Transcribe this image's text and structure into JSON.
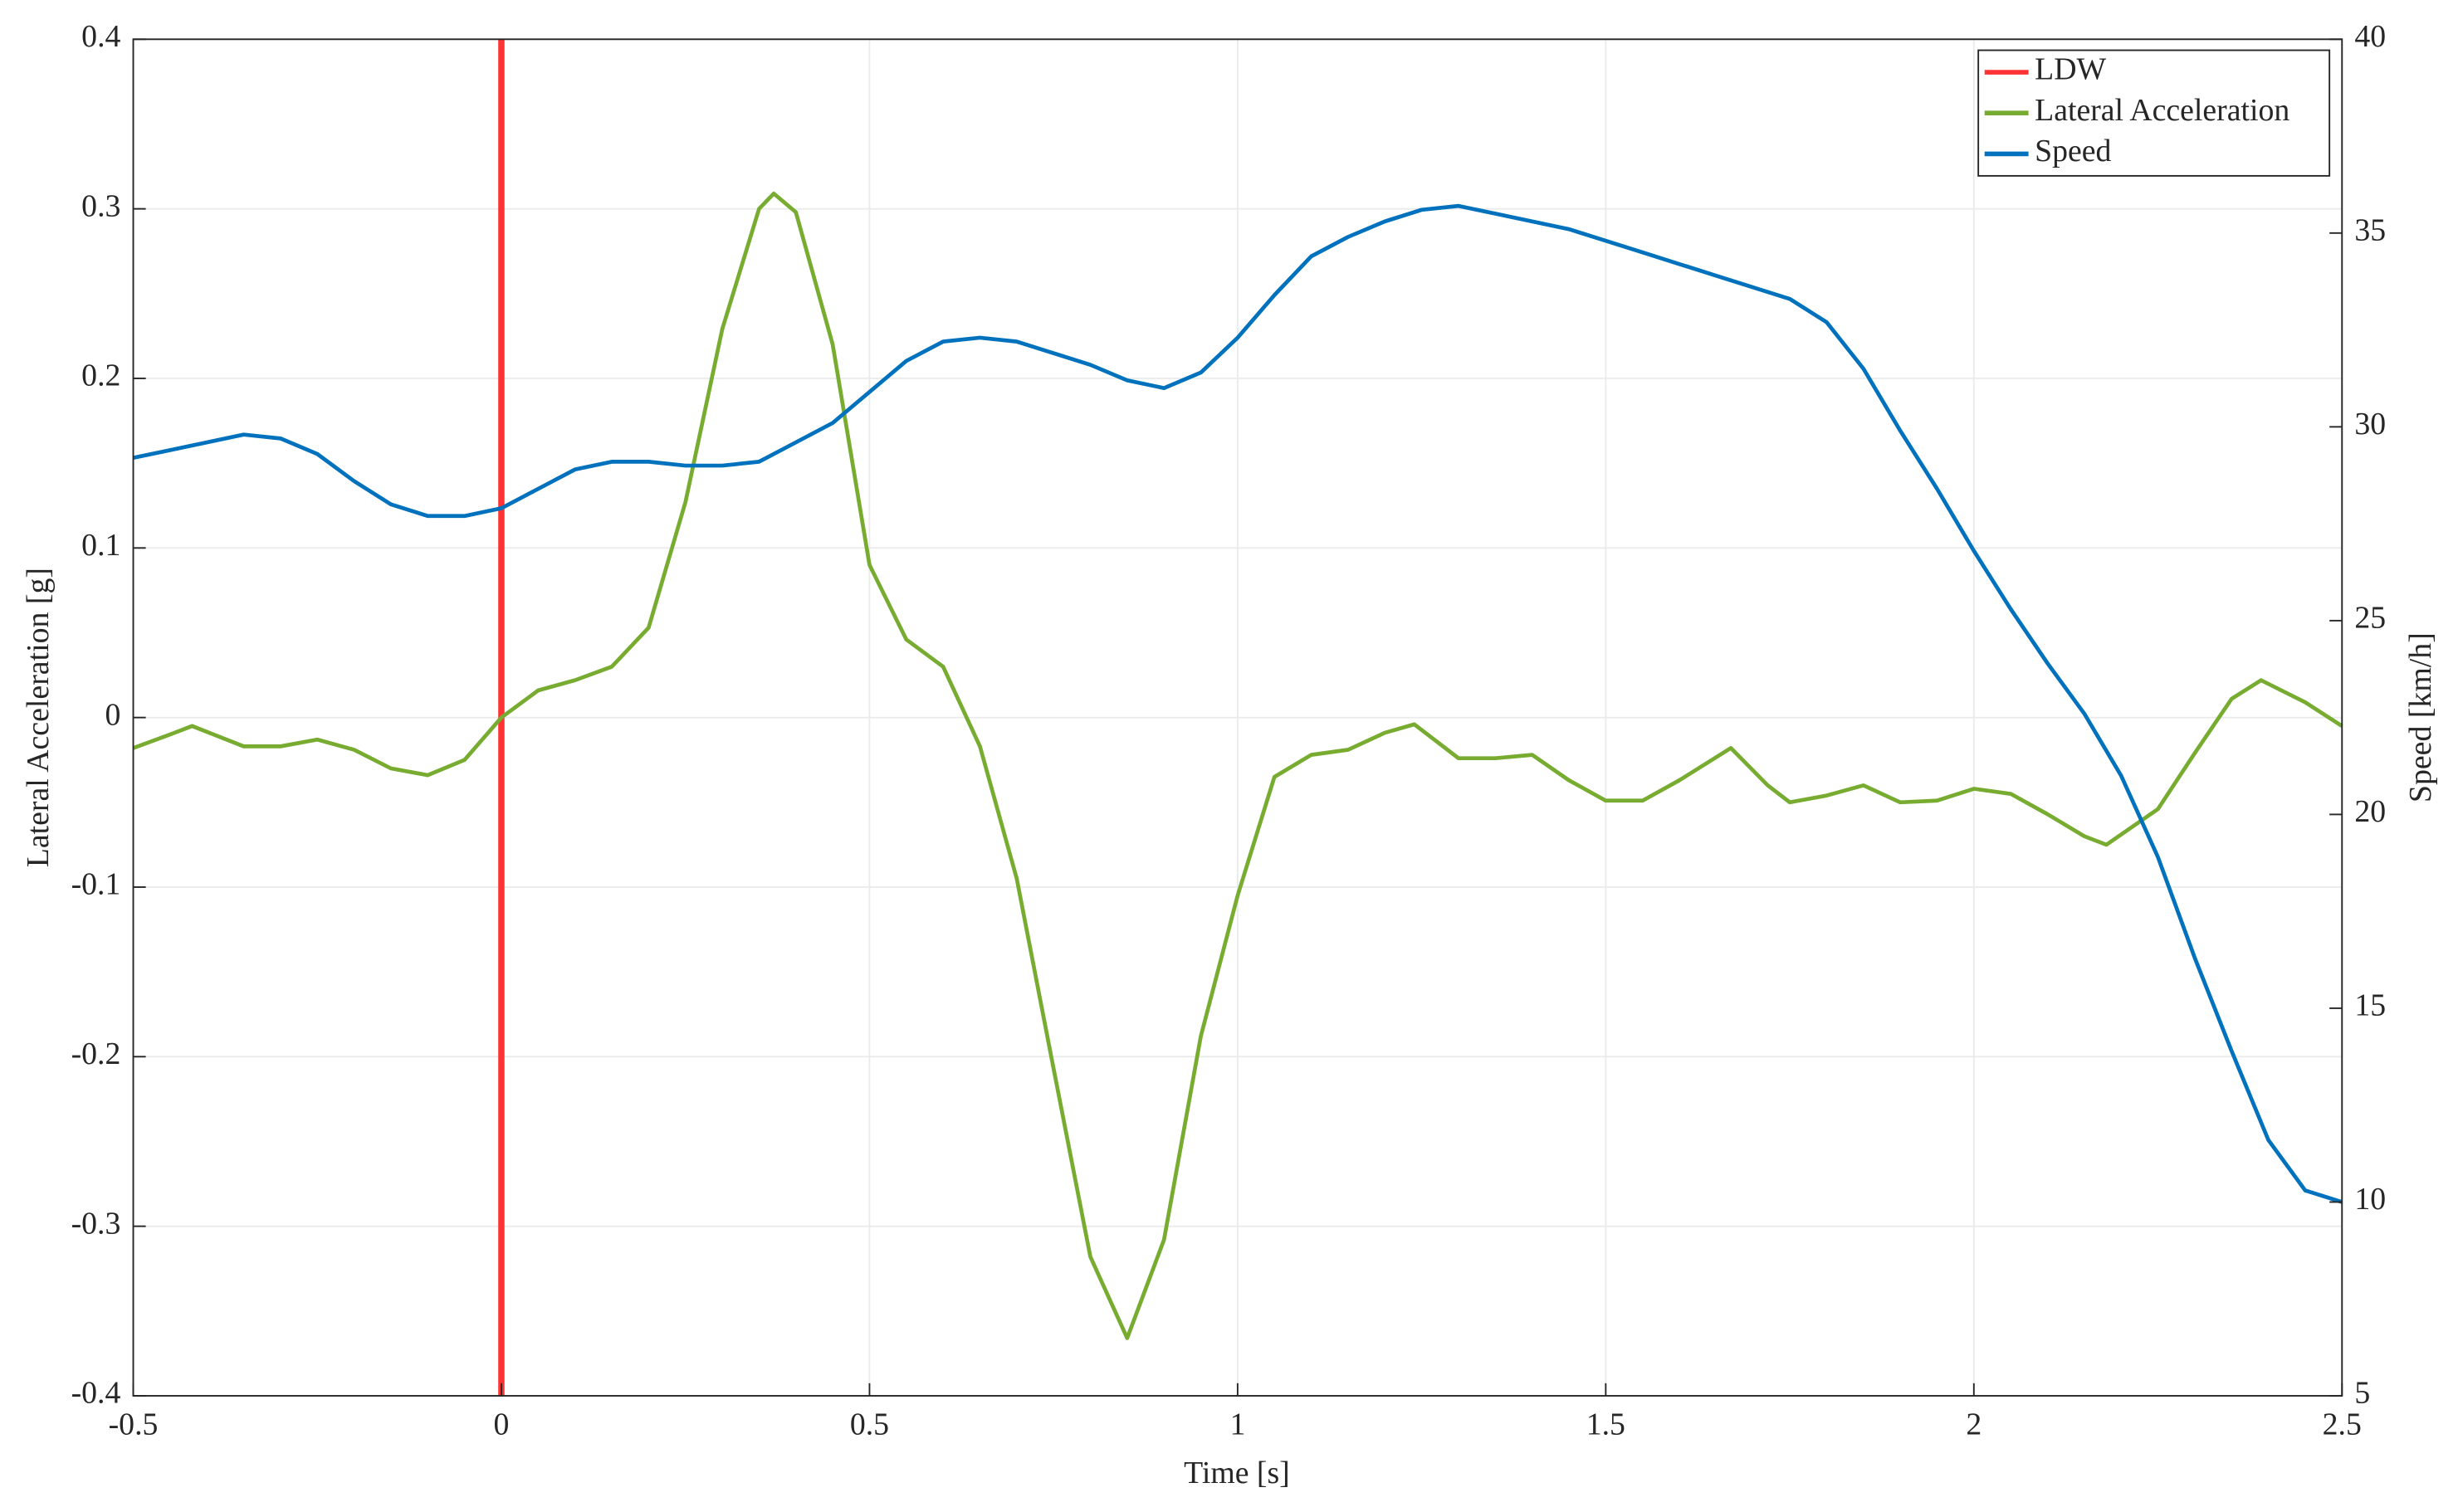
{
  "chart_data": {
    "type": "line",
    "xlabel": "Time [s]",
    "ylabel": "Lateral Acceleration [g]",
    "y2label": "Speed [km/h]",
    "xlim": [
      -0.5,
      2.5
    ],
    "xticks": [
      -0.5,
      0,
      0.5,
      1,
      1.5,
      2,
      2.5
    ],
    "ylim": [
      -0.4,
      0.4
    ],
    "yticks": [
      -0.4,
      -0.3,
      -0.2,
      -0.1,
      0,
      0.1,
      0.2,
      0.3,
      0.4
    ],
    "y2lim": [
      5,
      40
    ],
    "y2ticks": [
      5,
      10,
      15,
      20,
      25,
      30,
      35,
      40
    ],
    "grid": true,
    "legend": "upper right",
    "series": [
      {
        "name": "LDW",
        "color": "#ff3333",
        "x": [
          0,
          0
        ],
        "values": [
          -0.4,
          0.4
        ]
      },
      {
        "name": "Lateral Acceleration",
        "color": "#77ac30",
        "x": [
          -0.5,
          -0.45,
          -0.42,
          -0.35,
          -0.3,
          -0.25,
          -0.2,
          -0.15,
          -0.1,
          -0.05,
          0,
          0.05,
          0.1,
          0.15,
          0.2,
          0.25,
          0.3,
          0.35,
          0.37,
          0.4,
          0.45,
          0.5,
          0.55,
          0.6,
          0.65,
          0.7,
          0.75,
          0.8,
          0.85,
          0.9,
          0.95,
          1.0,
          1.05,
          1.1,
          1.15,
          1.2,
          1.24,
          1.3,
          1.35,
          1.4,
          1.45,
          1.5,
          1.55,
          1.6,
          1.67,
          1.72,
          1.75,
          1.8,
          1.85,
          1.9,
          1.95,
          2.0,
          2.05,
          2.1,
          2.15,
          2.18,
          2.25,
          2.3,
          2.35,
          2.39,
          2.45,
          2.5
        ],
        "values": [
          -0.018,
          -0.01,
          -0.005,
          -0.017,
          -0.017,
          -0.013,
          -0.019,
          -0.03,
          -0.034,
          -0.025,
          0.0,
          0.016,
          0.022,
          0.03,
          0.053,
          0.127,
          0.229,
          0.3,
          0.309,
          0.298,
          0.22,
          0.09,
          0.046,
          0.03,
          -0.017,
          -0.095,
          -0.207,
          -0.318,
          -0.366,
          -0.308,
          -0.188,
          -0.105,
          -0.035,
          -0.022,
          -0.019,
          -0.009,
          -0.004,
          -0.024,
          -0.024,
          -0.022,
          -0.037,
          -0.049,
          -0.049,
          -0.037,
          -0.018,
          -0.04,
          -0.05,
          -0.046,
          -0.04,
          -0.05,
          -0.049,
          -0.042,
          -0.045,
          -0.057,
          -0.07,
          -0.075,
          -0.054,
          -0.021,
          0.011,
          0.022,
          0.009,
          -0.005
        ]
      },
      {
        "name": "Speed",
        "color": "#0072bd",
        "axis": "y2",
        "x": [
          -0.5,
          -0.45,
          -0.4,
          -0.35,
          -0.3,
          -0.25,
          -0.2,
          -0.15,
          -0.1,
          -0.05,
          0,
          0.05,
          0.1,
          0.15,
          0.2,
          0.25,
          0.3,
          0.35,
          0.4,
          0.45,
          0.5,
          0.55,
          0.6,
          0.65,
          0.7,
          0.75,
          0.8,
          0.85,
          0.9,
          0.95,
          1.0,
          1.05,
          1.1,
          1.15,
          1.2,
          1.25,
          1.3,
          1.35,
          1.4,
          1.45,
          1.5,
          1.55,
          1.6,
          1.65,
          1.7,
          1.75,
          1.8,
          1.85,
          1.9,
          1.95,
          2.0,
          2.05,
          2.1,
          2.15,
          2.2,
          2.25,
          2.3,
          2.35,
          2.4,
          2.45,
          2.5
        ],
        "values": [
          29.2,
          29.4,
          29.6,
          29.8,
          29.7,
          29.3,
          28.6,
          28.0,
          27.7,
          27.7,
          27.9,
          28.4,
          28.9,
          29.1,
          29.1,
          29.0,
          29.0,
          29.1,
          29.6,
          30.1,
          30.9,
          31.7,
          32.2,
          32.3,
          32.2,
          31.9,
          31.6,
          31.2,
          31.0,
          31.4,
          32.3,
          33.4,
          34.4,
          34.9,
          35.3,
          35.6,
          35.7,
          35.5,
          35.3,
          35.1,
          34.8,
          34.5,
          34.2,
          33.9,
          33.6,
          33.3,
          32.7,
          31.5,
          29.9,
          28.4,
          26.8,
          25.3,
          23.9,
          22.6,
          21.0,
          18.9,
          16.3,
          13.9,
          11.6,
          10.3,
          10.0
        ]
      }
    ]
  }
}
